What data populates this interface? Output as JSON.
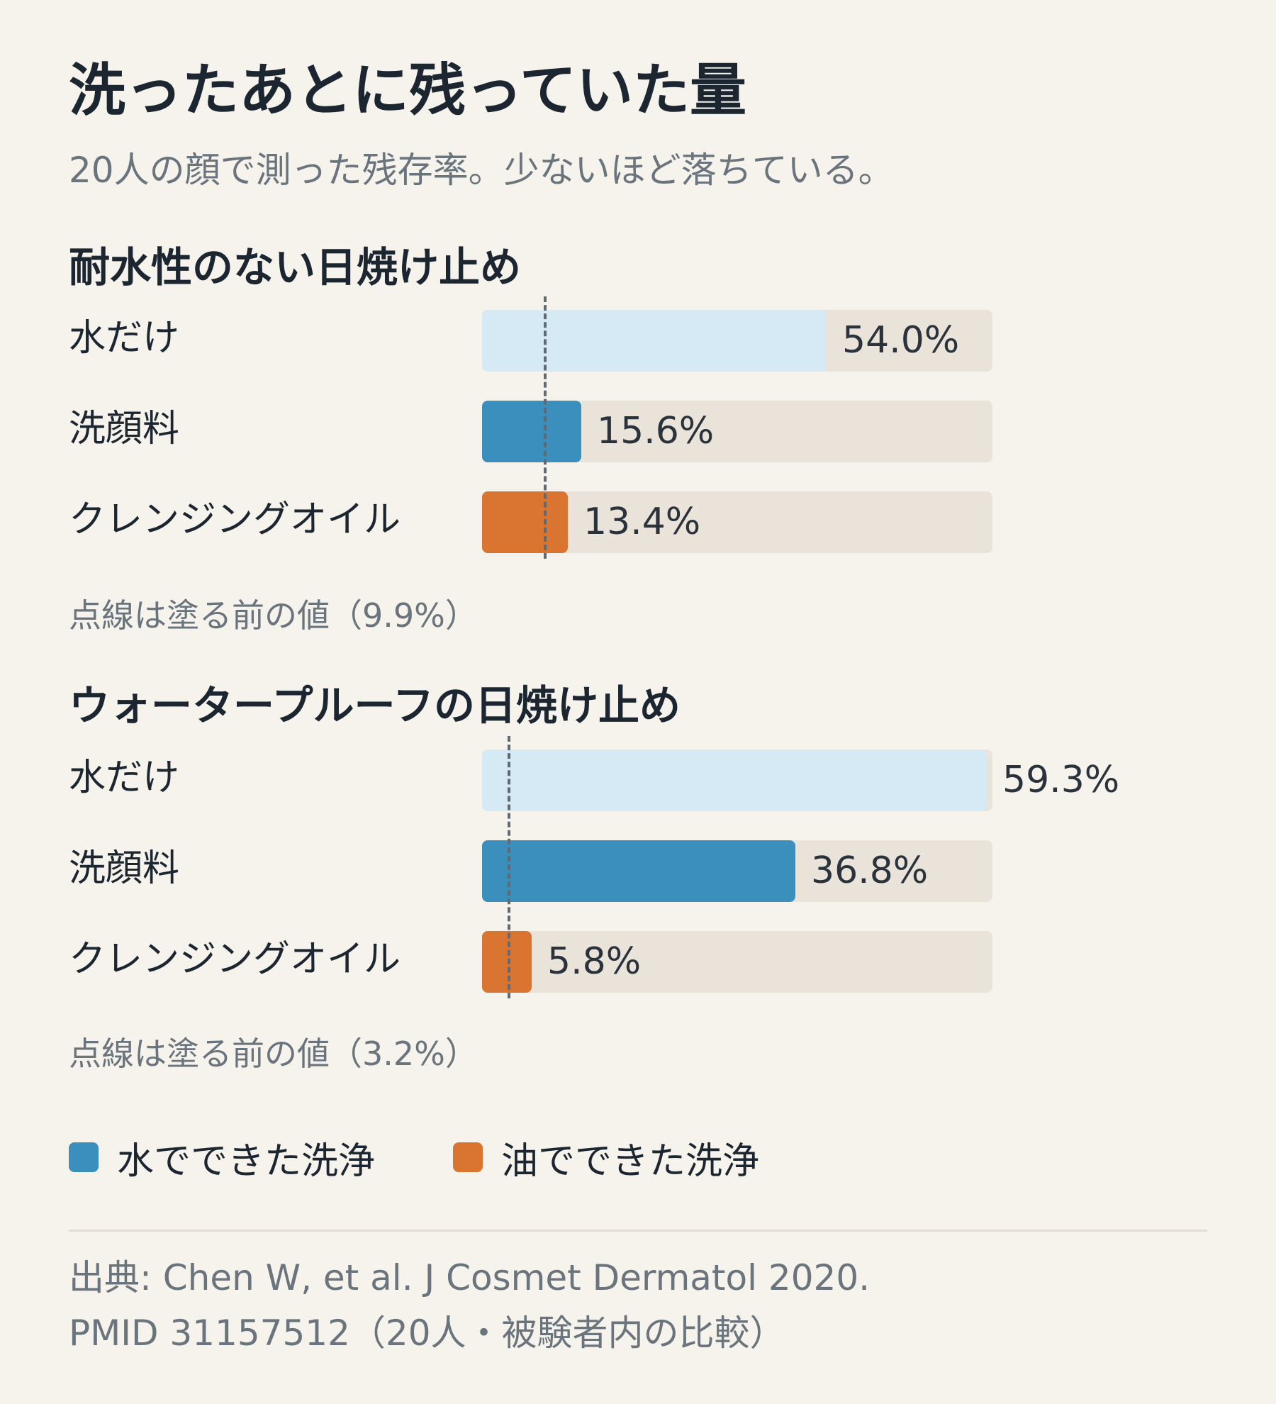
{
  "title": "洗ったあとに残っていた量",
  "subtitle": "20人の顔で測った残存率。少ないほど落ちている。",
  "chart_data": [
    {
      "type": "bar",
      "orientation": "horizontal",
      "title": "耐水性のない日焼け止め",
      "categories": [
        "水だけ",
        "洗顔料",
        "クレンジングオイル"
      ],
      "values": [
        54.0,
        15.6,
        13.4
      ],
      "value_labels": [
        "54.0%",
        "15.6%",
        "13.4%"
      ],
      "bar_colors": [
        "#d6eaf5",
        "#3a8fbd",
        "#d97530"
      ],
      "reference_value": 9.9,
      "reference_note": "点線は塗る前の値（9.9%）",
      "xlim": [
        0,
        80
      ]
    },
    {
      "type": "bar",
      "orientation": "horizontal",
      "title": "ウォータープルーフの日焼け止め",
      "categories": [
        "水だけ",
        "洗顔料",
        "クレンジングオイル"
      ],
      "values": [
        59.3,
        36.8,
        5.8
      ],
      "value_labels": [
        "59.3%",
        "36.8%",
        "5.8%"
      ],
      "bar_colors": [
        "#d6eaf5",
        "#3a8fbd",
        "#d97530"
      ],
      "reference_value": 3.2,
      "reference_note": "点線は塗る前の値（3.2%）",
      "xlim": [
        0,
        60
      ]
    }
  ],
  "legend": [
    {
      "label": "水でできた洗浄",
      "color": "#3a8fbd"
    },
    {
      "label": "油でできた洗浄",
      "color": "#d97530"
    }
  ],
  "source": {
    "line1": "出典: Chen W, et al. J Cosmet Dermatol 2020.",
    "line2": "PMID 31157512（20人・被験者内の比較）"
  }
}
